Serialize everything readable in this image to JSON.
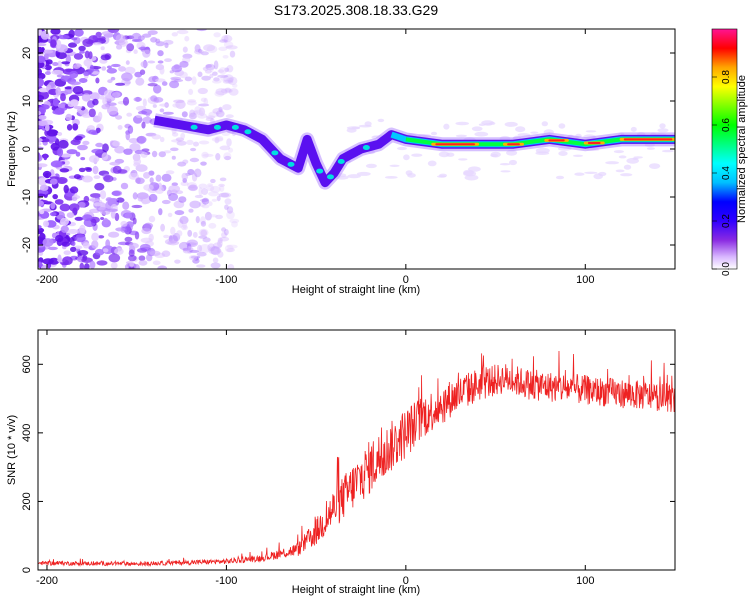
{
  "title": "S173.2025.308.18.33.G29",
  "chart_data": [
    {
      "type": "heatmap",
      "panel": "spectrogram",
      "xlabel": "Height of straight line (km)",
      "ylabel": "Frequency (Hz)",
      "xlim": [
        -205,
        150
      ],
      "ylim": [
        -25,
        25
      ],
      "xticks": [
        -200,
        -100,
        0,
        100
      ],
      "yticks": [
        20,
        10,
        0,
        -10,
        -20
      ],
      "colorbar": {
        "label": "Normalized spectral amplitude",
        "range": [
          0.0,
          1.0
        ],
        "ticks": [
          0.0,
          0.2,
          0.4,
          0.6,
          0.8
        ],
        "colormap": [
          "#ffffff",
          "#d9b8ff",
          "#8a2be2",
          "#5a00ff",
          "#0000ff",
          "#00bfff",
          "#00ffff",
          "#00ff7f",
          "#00ff00",
          "#7fff00",
          "#ffff00",
          "#ffa500",
          "#ff0000",
          "#ff1493"
        ]
      },
      "ridge": [
        {
          "x": -140,
          "f": 6
        },
        {
          "x": -125,
          "f": 5
        },
        {
          "x": -110,
          "f": 4
        },
        {
          "x": -100,
          "f": 5
        },
        {
          "x": -90,
          "f": 4
        },
        {
          "x": -80,
          "f": 2
        },
        {
          "x": -70,
          "f": -2
        },
        {
          "x": -60,
          "f": -4
        },
        {
          "x": -55,
          "f": 2
        },
        {
          "x": -50,
          "f": -3
        },
        {
          "x": -45,
          "f": -7
        },
        {
          "x": -40,
          "f": -5
        },
        {
          "x": -35,
          "f": -2
        },
        {
          "x": -25,
          "f": 0
        },
        {
          "x": -15,
          "f": 1
        },
        {
          "x": -8,
          "f": 3
        },
        {
          "x": 0,
          "f": 2
        },
        {
          "x": 20,
          "f": 1
        },
        {
          "x": 40,
          "f": 1
        },
        {
          "x": 60,
          "f": 1
        },
        {
          "x": 80,
          "f": 2
        },
        {
          "x": 100,
          "f": 1
        },
        {
          "x": 120,
          "f": 2
        },
        {
          "x": 150,
          "f": 2
        }
      ]
    },
    {
      "type": "line",
      "panel": "snr",
      "xlabel": "Height of straight line (km)",
      "ylabel": "SNR (10 * v/v)",
      "xlim": [
        -205,
        150
      ],
      "ylim": [
        0,
        700
      ],
      "xticks": [
        -200,
        -100,
        0,
        100
      ],
      "yticks": [
        0,
        200,
        400,
        600
      ],
      "series": [
        {
          "name": "SNR",
          "color": "#ee2222",
          "envelope": [
            {
              "x": -205,
              "mean": 20,
              "spread": 12
            },
            {
              "x": -150,
              "mean": 18,
              "spread": 12
            },
            {
              "x": -100,
              "mean": 25,
              "spread": 15
            },
            {
              "x": -80,
              "mean": 35,
              "spread": 20
            },
            {
              "x": -60,
              "mean": 60,
              "spread": 40
            },
            {
              "x": -50,
              "mean": 110,
              "spread": 80
            },
            {
              "x": -40,
              "mean": 180,
              "spread": 120
            },
            {
              "x": -30,
              "mean": 240,
              "spread": 140
            },
            {
              "x": -20,
              "mean": 300,
              "spread": 160
            },
            {
              "x": -10,
              "mean": 350,
              "spread": 150
            },
            {
              "x": 0,
              "mean": 400,
              "spread": 150
            },
            {
              "x": 10,
              "mean": 450,
              "spread": 130
            },
            {
              "x": 25,
              "mean": 500,
              "spread": 110
            },
            {
              "x": 40,
              "mean": 540,
              "spread": 100
            },
            {
              "x": 55,
              "mean": 560,
              "spread": 90
            },
            {
              "x": 70,
              "mean": 540,
              "spread": 90
            },
            {
              "x": 90,
              "mean": 530,
              "spread": 90
            },
            {
              "x": 110,
              "mean": 520,
              "spread": 85
            },
            {
              "x": 130,
              "mean": 510,
              "spread": 85
            },
            {
              "x": 150,
              "mean": 500,
              "spread": 80
            }
          ]
        }
      ]
    }
  ]
}
